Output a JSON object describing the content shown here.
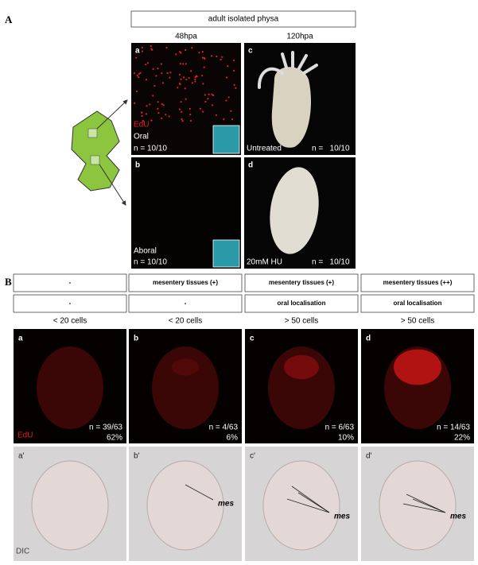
{
  "panel_a": {
    "label": "A",
    "header": "adult isolated physa",
    "columns": [
      "48hpa",
      "120hpa"
    ],
    "images": [
      {
        "letter": "a",
        "stain": "EdU",
        "region": "Oral",
        "count": "n = 10/10"
      },
      {
        "letter": "c",
        "condition": "Untreated",
        "count": "n =   10/10"
      },
      {
        "letter": "b",
        "region": "Aboral",
        "count": "n = 10/10"
      },
      {
        "letter": "d",
        "condition": "20mM HU",
        "count": "n =   10/10"
      }
    ]
  },
  "panel_b": {
    "label": "B",
    "stain": "EdU",
    "dic": "DIC",
    "mes_label": "mes",
    "columns": [
      {
        "mesentery": "-",
        "localisation": "-",
        "cells": "< 20 cells",
        "letter": "a",
        "count": "n = 39/63",
        "percent": "62%",
        "dic_letter": "a'"
      },
      {
        "mesentery": "mesentery tissues (+)",
        "localisation": "-",
        "cells": "< 20 cells",
        "letter": "b",
        "count": "n = 4/63",
        "percent": "6%",
        "dic_letter": "b'"
      },
      {
        "mesentery": "mesentery tissues (+)",
        "localisation": "oral localisation",
        "cells": "> 50 cells",
        "letter": "c",
        "count": "n = 6/63",
        "percent": "10%",
        "dic_letter": "c'"
      },
      {
        "mesentery": "mesentery tissues (++)",
        "localisation": "oral localisation",
        "cells": "> 50 cells",
        "letter": "d",
        "count": "n = 14/63",
        "percent": "22%",
        "dic_letter": "d'"
      }
    ]
  }
}
